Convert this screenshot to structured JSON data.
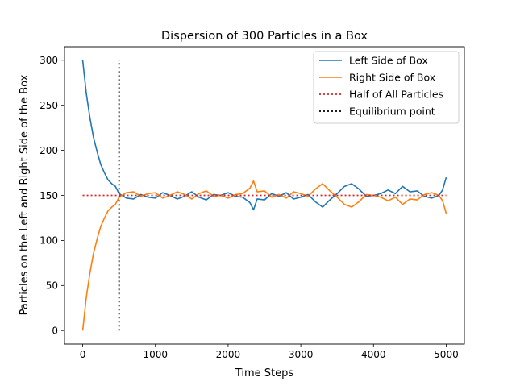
{
  "chart_data": {
    "type": "line",
    "title": "Dispersion of 300 Particles in a Box",
    "xlabel": "Time Steps",
    "ylabel": "Particles on the Left and Right Side of the Box",
    "xlim": [
      -250,
      5250
    ],
    "ylim": [
      -15,
      315
    ],
    "xticks": [
      0,
      1000,
      2000,
      3000,
      4000,
      5000
    ],
    "xtick_labels": [
      "0",
      "1000",
      "2000",
      "3000",
      "4000",
      "5000"
    ],
    "yticks": [
      0,
      50,
      100,
      150,
      200,
      250,
      300
    ],
    "ytick_labels": [
      "0",
      "50",
      "100",
      "150",
      "200",
      "250",
      "300"
    ],
    "grid": false,
    "legend_position": "top-right",
    "series": [
      {
        "name": "Left Side of Box",
        "color": "#1f77b4",
        "style": "solid",
        "x": [
          0,
          50,
          100,
          150,
          200,
          250,
          300,
          350,
          400,
          450,
          500,
          600,
          700,
          800,
          900,
          1000,
          1100,
          1200,
          1300,
          1400,
          1500,
          1600,
          1700,
          1800,
          1900,
          2000,
          2100,
          2200,
          2300,
          2350,
          2400,
          2500,
          2600,
          2700,
          2800,
          2900,
          3000,
          3100,
          3200,
          3300,
          3400,
          3500,
          3600,
          3700,
          3800,
          3900,
          4000,
          4100,
          4200,
          4300,
          4400,
          4500,
          4600,
          4700,
          4800,
          4900,
          4950,
          5000
        ],
        "y": [
          300,
          263,
          236,
          214,
          198,
          184,
          175,
          167,
          163,
          160,
          152,
          147,
          146,
          151,
          148,
          147,
          153,
          150,
          146,
          149,
          154,
          148,
          145,
          151,
          150,
          153,
          149,
          148,
          142,
          134,
          146,
          145,
          152,
          149,
          153,
          146,
          148,
          151,
          143,
          137,
          145,
          152,
          160,
          163,
          157,
          149,
          150,
          152,
          156,
          152,
          160,
          154,
          155,
          149,
          147,
          150,
          156,
          170
        ]
      },
      {
        "name": "Right Side of Box",
        "color": "#ff7f0e",
        "style": "solid",
        "x": [
          0,
          50,
          100,
          150,
          200,
          250,
          300,
          350,
          400,
          450,
          500,
          600,
          700,
          800,
          900,
          1000,
          1100,
          1200,
          1300,
          1400,
          1500,
          1600,
          1700,
          1800,
          1900,
          2000,
          2100,
          2200,
          2300,
          2350,
          2400,
          2500,
          2600,
          2700,
          2800,
          2900,
          3000,
          3100,
          3200,
          3300,
          3400,
          3500,
          3600,
          3700,
          3800,
          3900,
          4000,
          4100,
          4200,
          4300,
          4400,
          4500,
          4600,
          4700,
          4800,
          4900,
          4950,
          5000
        ],
        "y": [
          0,
          37,
          64,
          86,
          102,
          116,
          125,
          133,
          137,
          140,
          148,
          153,
          154,
          149,
          152,
          153,
          147,
          150,
          154,
          151,
          146,
          152,
          155,
          149,
          150,
          147,
          151,
          152,
          158,
          166,
          154,
          155,
          148,
          151,
          147,
          154,
          152,
          149,
          157,
          163,
          155,
          148,
          140,
          137,
          143,
          151,
          150,
          148,
          144,
          148,
          140,
          146,
          145,
          151,
          153,
          150,
          144,
          130
        ]
      },
      {
        "name": "Half of All Particles",
        "color": "#d62728",
        "style": "dotted",
        "x": [
          0,
          5000
        ],
        "y": [
          150,
          150
        ]
      },
      {
        "name": "Equilibrium point",
        "color": "#000000",
        "style": "dotted",
        "x": [
          500,
          500
        ],
        "y": [
          0,
          300
        ]
      }
    ]
  }
}
